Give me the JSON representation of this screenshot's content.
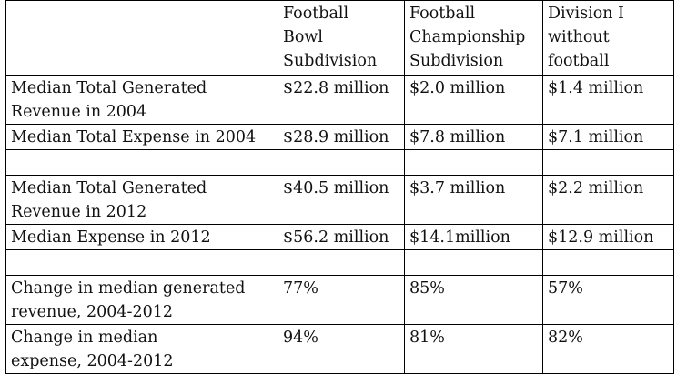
{
  "table": {
    "headers": [
      "",
      "Football\nBowl\nSubdivision",
      "Football\nChampionship\nSubdivision",
      "Division I\nwithout\nfootball"
    ],
    "rows": [
      [
        "Median Total Generated\nRevenue in 2004",
        "$22.8 million",
        "$2.0 million",
        "$1.4 million"
      ],
      [
        "Median Total Expense in 2004",
        "$28.9 million",
        "$7.8 million",
        "$7.1 million"
      ],
      [
        "",
        "",
        "",
        ""
      ],
      [
        "Median Total Generated\nRevenue in 2012",
        "$40.5 million",
        "$3.7 million",
        "$2.2 million"
      ],
      [
        "Median Expense in 2012",
        "$56.2 million",
        "$14.1million",
        "$12.9 million"
      ],
      [
        "",
        "",
        "",
        ""
      ],
      [
        "Change in median  generated\nrevenue,  2004-2012",
        "77%",
        "85%",
        "57%"
      ],
      [
        "Change in median\nexpense, 2004-2012",
        "94%",
        "81%",
        "82%"
      ]
    ]
  }
}
